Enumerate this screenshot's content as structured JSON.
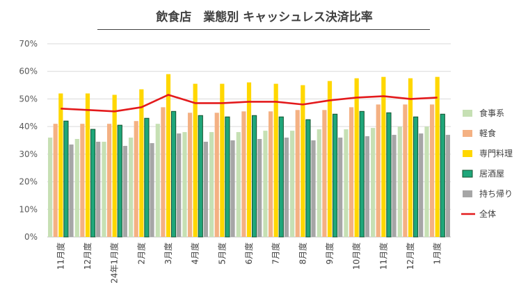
{
  "chart_data": {
    "type": "bar",
    "title": "飲食店　業態別 キャッシュレス決済比率",
    "xlabel": "",
    "ylabel": "",
    "ylim": [
      0,
      70
    ],
    "y_ticks": [
      "0%",
      "10%",
      "20%",
      "30%",
      "40%",
      "50%",
      "60%",
      "70%"
    ],
    "categories": [
      "11月度",
      "12月度",
      "24年1月度",
      "2月度",
      "3月度",
      "4月度",
      "5月度",
      "6月度",
      "7月度",
      "8月度",
      "9月度",
      "10月度",
      "11月度",
      "12月度",
      "1月度"
    ],
    "series": [
      {
        "name": "食事系",
        "kind": "bar",
        "color": "#c6e0b4",
        "values": [
          36,
          35.5,
          34.5,
          36,
          41,
          38,
          38,
          38,
          38.5,
          38.5,
          39,
          39,
          39.5,
          40,
          40
        ]
      },
      {
        "name": "軽食",
        "kind": "bar",
        "color": "#f4b183",
        "values": [
          41,
          41,
          41,
          42,
          47,
          45,
          45,
          45.5,
          45.5,
          46,
          46,
          47,
          48,
          48,
          48
        ]
      },
      {
        "name": "専門料理",
        "kind": "bar",
        "color": "#ffd700",
        "values": [
          52,
          52,
          51.5,
          53.5,
          59,
          55.5,
          55.5,
          56,
          55.5,
          55,
          56.5,
          57.5,
          58,
          57.5,
          58
        ]
      },
      {
        "name": "居酒屋",
        "kind": "bar",
        "color": "#1aa06a",
        "values": [
          42,
          39,
          40.5,
          43,
          45.5,
          44,
          43.5,
          44,
          43.5,
          42.5,
          44.5,
          45.5,
          45,
          43.5,
          44.5
        ]
      },
      {
        "name": "持ち帰り",
        "kind": "bar",
        "color": "#a6a6a6",
        "values": [
          33.5,
          34.5,
          33,
          34,
          37.5,
          34.5,
          35,
          35.5,
          36,
          35,
          36,
          36.5,
          37,
          37.5,
          37
        ]
      },
      {
        "name": "全体",
        "kind": "line",
        "color": "#e31a1c",
        "values": [
          46.5,
          46,
          45.5,
          47,
          51.5,
          48.5,
          48.5,
          49,
          49,
          48,
          49.5,
          50.5,
          51,
          50,
          50.5
        ]
      }
    ],
    "grid": true,
    "legend_position": "right"
  }
}
